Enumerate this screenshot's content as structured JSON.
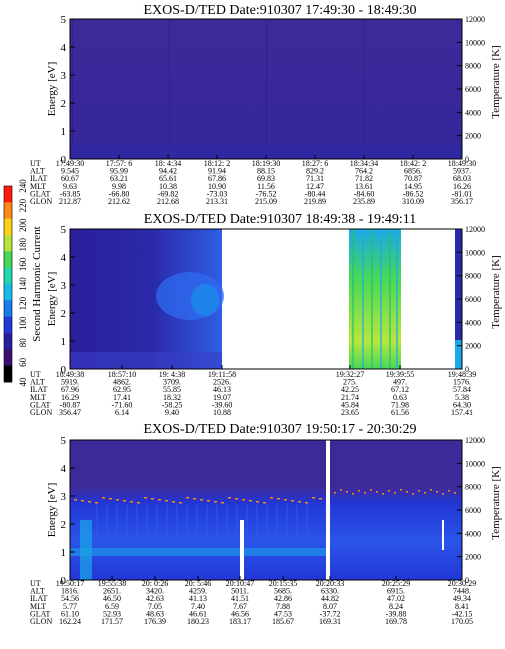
{
  "colors": {
    "background": "#3d2a99",
    "background_dark": "#281a78",
    "blue": "#2236d6",
    "bright_blue": "#2f6bf0",
    "cyan": "#1aa8e8",
    "green": "#48d858",
    "yellow_green": "#b8e63c",
    "orange": "#ff8a1a",
    "red": "#ff1a10",
    "white": "#ffffff"
  },
  "colorbar": {
    "label": "Second Harmonic Current",
    "ticks": [
      "40",
      "60",
      "80",
      "100",
      "120",
      "140",
      "160",
      "180",
      "200",
      "220",
      "240"
    ],
    "colors": [
      "#000000",
      "#3a0f6e",
      "#2a1d9e",
      "#1f3ad8",
      "#1a7cec",
      "#18bce8",
      "#22d8b0",
      "#48d858",
      "#b8e63c",
      "#ffd21a",
      "#ff8a1a",
      "#ff1a10"
    ]
  },
  "ephemeris_labels": [
    "UT",
    "ALT",
    "ILAT",
    "MLT",
    "GLAT",
    "GLON"
  ],
  "chart_data": [
    {
      "type": "heatmap",
      "title": "EXOS-D/TED    Date:910307   17:49:30 - 18:49:30",
      "ylabel": "Energy [eV]",
      "y2label": "Temperature [K]",
      "ylim": [
        0,
        5
      ],
      "y2lim": [
        0,
        12000
      ],
      "yticks": [
        "0",
        "1",
        "2",
        "3",
        "4",
        "5"
      ],
      "y2ticks": [
        "0",
        "2000",
        "4000",
        "6000",
        "8000",
        "10000",
        "12000"
      ],
      "ephemeris": [
        [
          "17:49:30",
          "9.545",
          "60.67",
          "9.63",
          "-63.85",
          "212.87"
        ],
        [
          "17:57: 6",
          "95.99",
          "63.21",
          "9.98",
          "-66.80",
          "212.62"
        ],
        [
          "18: 4:34",
          "94.42",
          "65.61",
          "10.38",
          "-69.82",
          "212.68"
        ],
        [
          "18:12: 2",
          "91.94",
          "67.86",
          "10.90",
          "-73.03",
          "213.31"
        ],
        [
          "18:19:30",
          "88.15",
          "69.83",
          "11.56",
          "-76.52",
          "215.09"
        ],
        [
          "18:27: 6",
          "829.2",
          "71.31",
          "12.47",
          "-80.44",
          "219.89"
        ],
        [
          "18:34:34",
          "764.2",
          "71.82",
          "13.61",
          "-84.60",
          "235.89"
        ],
        [
          "18:42: 2",
          "6856.",
          "70.87",
          "14.95",
          "-86.52",
          "310.09"
        ],
        [
          "18:49:30",
          "5937.",
          "68.03",
          "16.26",
          "-81.01",
          "356.17"
        ]
      ]
    },
    {
      "type": "heatmap",
      "title": "EXOS-D/TED    Date:910307   18:49:38 - 19:49:11",
      "ylabel": "Energy [eV]",
      "y2label": "Temperature [K]",
      "ylim": [
        0,
        5
      ],
      "y2lim": [
        0,
        12000
      ],
      "yticks": [
        "0",
        "1",
        "2",
        "3",
        "4",
        "5"
      ],
      "y2ticks": [
        "0",
        "2000",
        "4000",
        "6000",
        "8000",
        "10000",
        "12000"
      ],
      "ephemeris": [
        [
          "18:49:38",
          "5919.",
          "67.96",
          "16.29",
          "-80.87",
          "356.47"
        ],
        [
          "18:57:10",
          "4862.",
          "62.95",
          "17.41",
          "-71.60",
          "6.14"
        ],
        [
          "19: 4:38",
          "3709.",
          "55.85",
          "18.32",
          "-58.25",
          "9.40"
        ],
        [
          "19:11:58",
          "2526.",
          "46.13",
          "19.07",
          "-39.60",
          "10.88"
        ],
        [
          "19:32:27",
          "275.",
          "42.25",
          "21.74",
          "45.84",
          "23.65"
        ],
        [
          "19:39:55",
          "497.",
          "67.12",
          "0.63",
          "71.98",
          "61.56"
        ],
        [
          "19:48:39",
          "1576.",
          "57.84",
          "5.38",
          "64.30",
          "157.41"
        ]
      ]
    },
    {
      "type": "heatmap",
      "title": "EXOS-D/TED    Date:910307   19:50:17 - 20:30:29",
      "ylabel": "Energy [eV]",
      "y2label": "Temperature [K]",
      "ylim": [
        0,
        5
      ],
      "y2lim": [
        0,
        12000
      ],
      "yticks": [
        "0",
        "1",
        "2",
        "3",
        "4",
        "5"
      ],
      "y2ticks": [
        "0",
        "2000",
        "4000",
        "6000",
        "8000",
        "10000",
        "12000"
      ],
      "ephemeris": [
        [
          "19:50:17",
          "1816.",
          "54.56",
          "5.77",
          "61.10",
          "162.24"
        ],
        [
          "19:55:38",
          "2651.",
          "46.50",
          "6.59",
          "52.93",
          "171.57"
        ],
        [
          "20: 0:26",
          "3420.",
          "42.63",
          "7.05",
          "48.63",
          "176.39"
        ],
        [
          "20: 5:46",
          "4259.",
          "41.13",
          "7.40",
          "46.61",
          "180.23"
        ],
        [
          "20:10:47",
          "5011.",
          "41.51",
          "7.67",
          "46.56",
          "183.17"
        ],
        [
          "20:15:35",
          "5685.",
          "42.86",
          "7.88",
          "47.53",
          "185.67"
        ],
        [
          "20:20:33",
          "6330.",
          "44.82",
          "8.07",
          "-37.72",
          "169.31"
        ],
        [
          "20:25:29",
          "6915.",
          "47.02",
          "8.24",
          "-39.88",
          "169.78"
        ],
        [
          "20:30:29",
          "7448.",
          "49.34",
          "8.41",
          "-42.15",
          "170.05"
        ]
      ]
    }
  ]
}
